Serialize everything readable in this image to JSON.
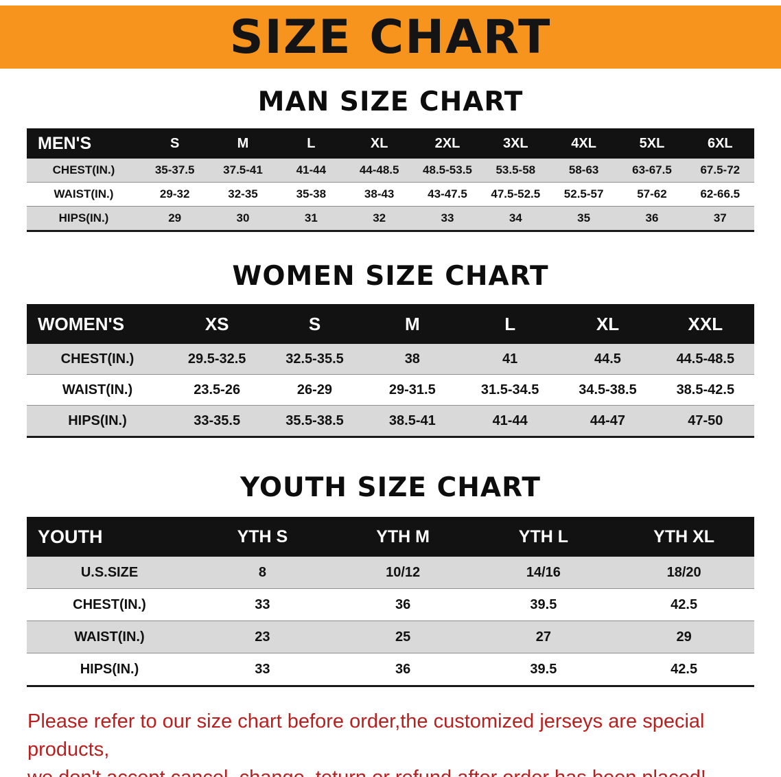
{
  "colors": {
    "banner_bg": "#f7941d",
    "header_bg": "#121212",
    "stripe_gray": "#d9d9d9",
    "footer_red": "#ba1f1f"
  },
  "banner": {
    "title": "SIZE CHART"
  },
  "sections": [
    {
      "heading": "MAN SIZE CHART",
      "table": {
        "header": [
          "MEN'S",
          "S",
          "M",
          "L",
          "XL",
          "2XL",
          "3XL",
          "4XL",
          "5XL",
          "6XL"
        ],
        "rows": [
          [
            "CHEST(IN.)",
            "35-37.5",
            "37.5-41",
            "41-44",
            "44-48.5",
            "48.5-53.5",
            "53.5-58",
            "58-63",
            "63-67.5",
            "67.5-72"
          ],
          [
            "WAIST(IN.)",
            "29-32",
            "32-35",
            "35-38",
            "38-43",
            "43-47.5",
            "47.5-52.5",
            "52.5-57",
            "57-62",
            "62-66.5"
          ],
          [
            "HIPS(IN.)",
            "29",
            "30",
            "31",
            "32",
            "33",
            "34",
            "35",
            "36",
            "37"
          ]
        ]
      }
    },
    {
      "heading": "WOMEN SIZE CHART",
      "table": {
        "header": [
          "WOMEN'S",
          "XS",
          "S",
          "M",
          "L",
          "XL",
          "XXL"
        ],
        "rows": [
          [
            "CHEST(IN.)",
            "29.5-32.5",
            "32.5-35.5",
            "38",
            "41",
            "44.5",
            "44.5-48.5"
          ],
          [
            "WAIST(IN.)",
            "23.5-26",
            "26-29",
            "29-31.5",
            "31.5-34.5",
            "34.5-38.5",
            "38.5-42.5"
          ],
          [
            "HIPS(IN.)",
            "33-35.5",
            "35.5-38.5",
            "38.5-41",
            "41-44",
            "44-47",
            "47-50"
          ]
        ]
      }
    },
    {
      "heading": "YOUTH SIZE CHART",
      "table": {
        "header": [
          "YOUTH",
          "YTH S",
          "YTH M",
          "YTH L",
          "YTH XL"
        ],
        "rows": [
          [
            "U.S.SIZE",
            "8",
            "10/12",
            "14/16",
            "18/20"
          ],
          [
            "CHEST(IN.)",
            "33",
            "36",
            "39.5",
            "42.5"
          ],
          [
            "WAIST(IN.)",
            "23",
            "25",
            "27",
            "29"
          ],
          [
            "HIPS(IN.)",
            "33",
            "36",
            "39.5",
            "42.5"
          ]
        ]
      }
    }
  ],
  "footer": {
    "line1": "Please refer to our size chart before order,the customized jerseys are special products,",
    "line2": "we don't accept cancel, change, teturn or refund after order has been placed!"
  }
}
